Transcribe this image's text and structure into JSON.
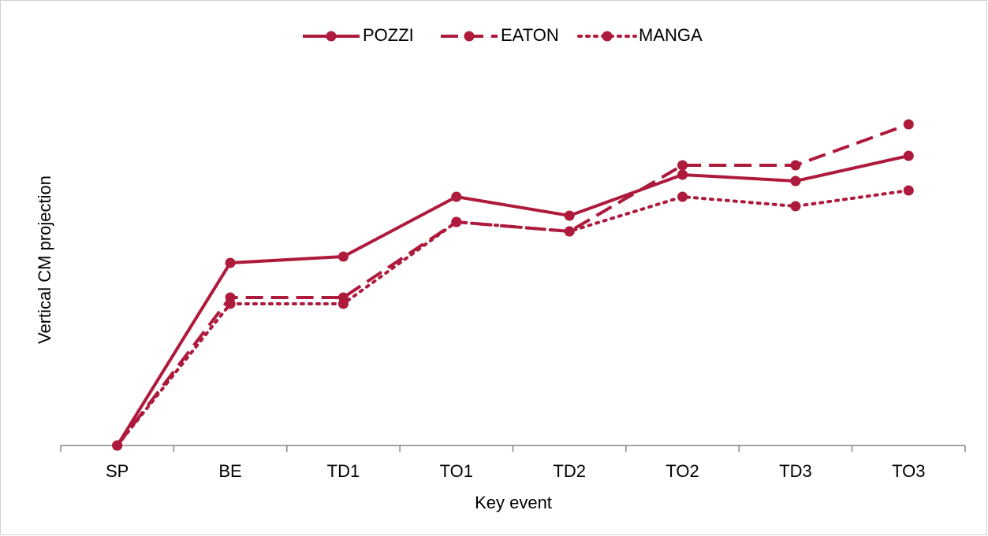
{
  "chart_data": {
    "type": "line",
    "x_label": "Key event",
    "y_label": "Vertical CM projection",
    "categories": [
      "SP",
      "BE",
      "TD1",
      "TO1",
      "TD2",
      "TO2",
      "TD3",
      "TO3"
    ],
    "series": [
      {
        "name": "POZZI",
        "color": "#ae1a3c",
        "dash": "solid",
        "values": [
          0,
          58,
          60,
          79,
          73,
          86,
          84,
          92
        ]
      },
      {
        "name": "EATON",
        "color": "#ae1a3c",
        "dash": "dashed",
        "values": [
          0,
          47,
          47,
          71,
          68,
          89,
          89,
          102
        ]
      },
      {
        "name": "MANGA",
        "color": "#ae1a3c",
        "dash": "dotted",
        "values": [
          0,
          45,
          45,
          71,
          68,
          79,
          76,
          81
        ]
      }
    ],
    "ylim": [
      0,
      120
    ],
    "legend": "top"
  }
}
